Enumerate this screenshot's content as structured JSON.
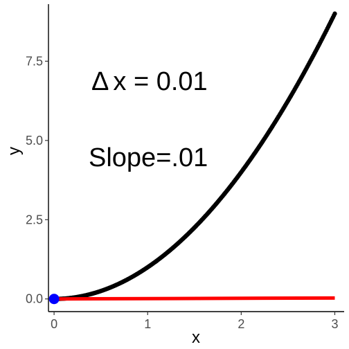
{
  "chart_data": {
    "type": "line",
    "title": "",
    "xlabel": "x",
    "ylabel": "y",
    "xlim": [
      -0.06,
      3.1
    ],
    "ylim": [
      -0.4,
      9.3
    ],
    "x_ticks": [
      {
        "value": 0,
        "label": "0"
      },
      {
        "value": 1,
        "label": "1"
      },
      {
        "value": 2,
        "label": "2"
      },
      {
        "value": 3,
        "label": "3"
      }
    ],
    "y_ticks": [
      {
        "value": 0,
        "label": "0.0"
      },
      {
        "value": 2.5,
        "label": "2.5"
      },
      {
        "value": 5,
        "label": "5.0"
      },
      {
        "value": 7.5,
        "label": "7.5"
      }
    ],
    "grid": false,
    "series": [
      {
        "function": "x^2",
        "x_range": [
          0,
          3
        ],
        "step": 0.01,
        "color": "#000000"
      },
      {
        "x": [
          0,
          3
        ],
        "y": [
          0,
          0.03
        ],
        "color": "#ff0000"
      }
    ],
    "point": {
      "x": 0,
      "y": 0,
      "color": "#0000ff"
    },
    "annotations": {
      "delta_symbol": "Δ",
      "delta_text": "x = 0.01",
      "slope_text": "Slope=.01"
    }
  }
}
